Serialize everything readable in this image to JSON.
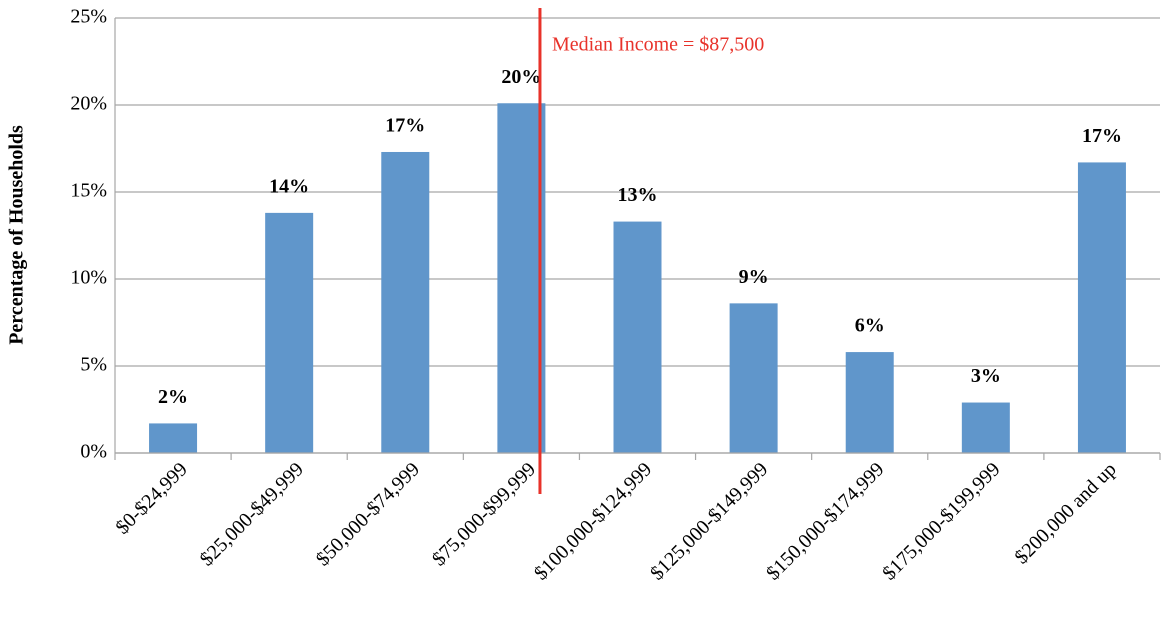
{
  "chart_data": {
    "type": "bar",
    "y_label": "Percentage of Households",
    "categories": [
      "$0-$24,999",
      "$25,000-$49,999",
      "$50,000-$74,999",
      "$75,000-$99,999",
      "$100,000-$124,999",
      "$125,000-$149,999",
      "$150,000-$174,999",
      "$175,000-$199,999",
      "$200,000 and up"
    ],
    "values": [
      1.7,
      13.8,
      17.3,
      20.1,
      13.3,
      8.6,
      5.8,
      2.9,
      16.7
    ],
    "value_labels": [
      "2%",
      "14%",
      "17%",
      "20%",
      "13%",
      "9%",
      "6%",
      "3%",
      "17%"
    ],
    "color": "#6096cb",
    "ylim": [
      0,
      25
    ],
    "yticks": [
      {
        "value": 0,
        "label": "0%"
      },
      {
        "value": 5,
        "label": "5%"
      },
      {
        "value": 10,
        "label": "10%"
      },
      {
        "value": 15,
        "label": "15%"
      },
      {
        "value": 20,
        "label": "20%"
      },
      {
        "value": 25,
        "label": "25%"
      }
    ],
    "grid": true,
    "annotation": {
      "text": "Median Income = $87,500",
      "color": "#e8322a"
    }
  }
}
